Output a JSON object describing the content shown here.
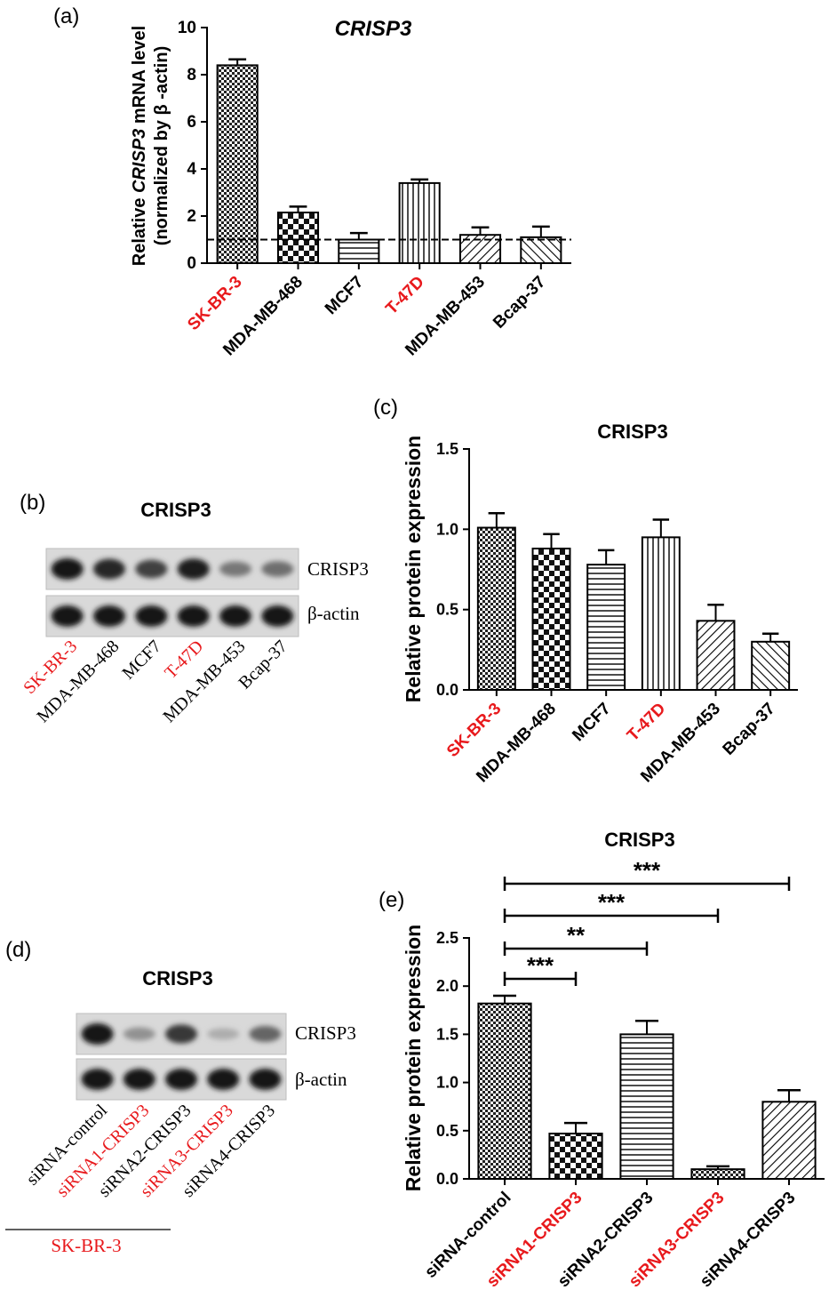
{
  "panels": {
    "a": "(a)",
    "b": "(b)",
    "c": "(c)",
    "d": "(d)",
    "e": "(e)"
  },
  "colors": {
    "highlight": "#e8191c",
    "normal": "#000000"
  },
  "chart_data": [
    {
      "id": "a",
      "type": "bar",
      "title": "CRISP3",
      "ylabel_line1_pre": "Relative ",
      "ylabel_line1_em": "CRISP3",
      "ylabel_line1_post": " mRNA level",
      "ylabel_line2": "(normalized by β -actin)",
      "ylim": [
        0,
        10
      ],
      "yticks": [
        0,
        2,
        4,
        6,
        8,
        10
      ],
      "reference_line": 1,
      "categories": [
        "SK-BR-3",
        "MDA-MB-468",
        "MCF7",
        "T-47D",
        "MDA-MB-453",
        "Bcap-37"
      ],
      "highlighted": [
        true,
        false,
        false,
        true,
        false,
        false
      ],
      "patterns": [
        "checker-fine",
        "checker",
        "hlines",
        "vlines",
        "diag",
        "diag-back"
      ],
      "values": [
        8.4,
        2.15,
        1.0,
        3.4,
        1.2,
        1.1
      ],
      "errors": [
        0.25,
        0.25,
        0.28,
        0.15,
        0.32,
        0.45
      ]
    },
    {
      "id": "c",
      "type": "bar",
      "title": "CRISP3",
      "ylabel": "Relative protein expression",
      "ylim": [
        0,
        1.5
      ],
      "yticks": [
        "0.0",
        "0.5",
        "1.0",
        "1.5"
      ],
      "categories": [
        "SK-BR-3",
        "MDA-MB-468",
        "MCF7",
        "T-47D",
        "MDA-MB-453",
        "Bcap-37"
      ],
      "highlighted": [
        true,
        false,
        false,
        true,
        false,
        false
      ],
      "patterns": [
        "checker-fine",
        "checker",
        "hlines",
        "vlines",
        "diag",
        "diag-back"
      ],
      "values": [
        1.01,
        0.88,
        0.78,
        0.95,
        0.43,
        0.3
      ],
      "errors": [
        0.09,
        0.09,
        0.09,
        0.11,
        0.1,
        0.05
      ]
    },
    {
      "id": "e",
      "type": "bar",
      "title": "CRISP3",
      "ylabel": "Relative protein expression",
      "ylim": [
        0,
        2.5
      ],
      "yticks": [
        "0.0",
        "0.5",
        "1.0",
        "1.5",
        "2.0",
        "2.5"
      ],
      "categories": [
        "siRNA-control",
        "siRNA1-CRISP3",
        "siRNA2-CRISP3",
        "siRNA3-CRISP3",
        "siRNA4-CRISP3"
      ],
      "highlighted": [
        false,
        true,
        false,
        true,
        false
      ],
      "patterns": [
        "checker-fine",
        "checker",
        "hlines",
        "checker-fine",
        "diag"
      ],
      "values": [
        1.82,
        0.47,
        1.5,
        0.1,
        0.8
      ],
      "errors": [
        0.08,
        0.11,
        0.14,
        0.03,
        0.12
      ],
      "significance": [
        {
          "from": 0,
          "to": 1,
          "label": "***"
        },
        {
          "from": 0,
          "to": 2,
          "label": "**"
        },
        {
          "from": 0,
          "to": 3,
          "label": "***"
        },
        {
          "from": 0,
          "to": 4,
          "label": "***"
        }
      ]
    }
  ],
  "blot_b": {
    "title": "CRISP3",
    "band_labels": [
      "CRISP3",
      "β-actin"
    ],
    "lanes": [
      "SK-BR-3",
      "MDA-MB-468",
      "MCF7",
      "T-47D",
      "MDA-MB-453",
      "Bcap-37"
    ],
    "highlighted": [
      true,
      false,
      false,
      true,
      false,
      false
    ],
    "crisp3_intensity": [
      1.0,
      0.9,
      0.75,
      0.95,
      0.45,
      0.5
    ],
    "actin_intensity": [
      1,
      1,
      1,
      1,
      1,
      1
    ]
  },
  "blot_d": {
    "title": "CRISP3",
    "band_labels": [
      "CRISP3",
      "β-actin"
    ],
    "lanes": [
      "siRNA-control",
      "siRNA1-CRISP3",
      "siRNA2-CRISP3",
      "siRNA3-CRISP3",
      "siRNA4-CRISP3"
    ],
    "highlighted": [
      false,
      true,
      false,
      true,
      false
    ],
    "crisp3_intensity": [
      1.0,
      0.3,
      0.8,
      0.15,
      0.55
    ],
    "actin_intensity": [
      1,
      1,
      1,
      1,
      1
    ],
    "group_label": "SK-BR-3"
  }
}
